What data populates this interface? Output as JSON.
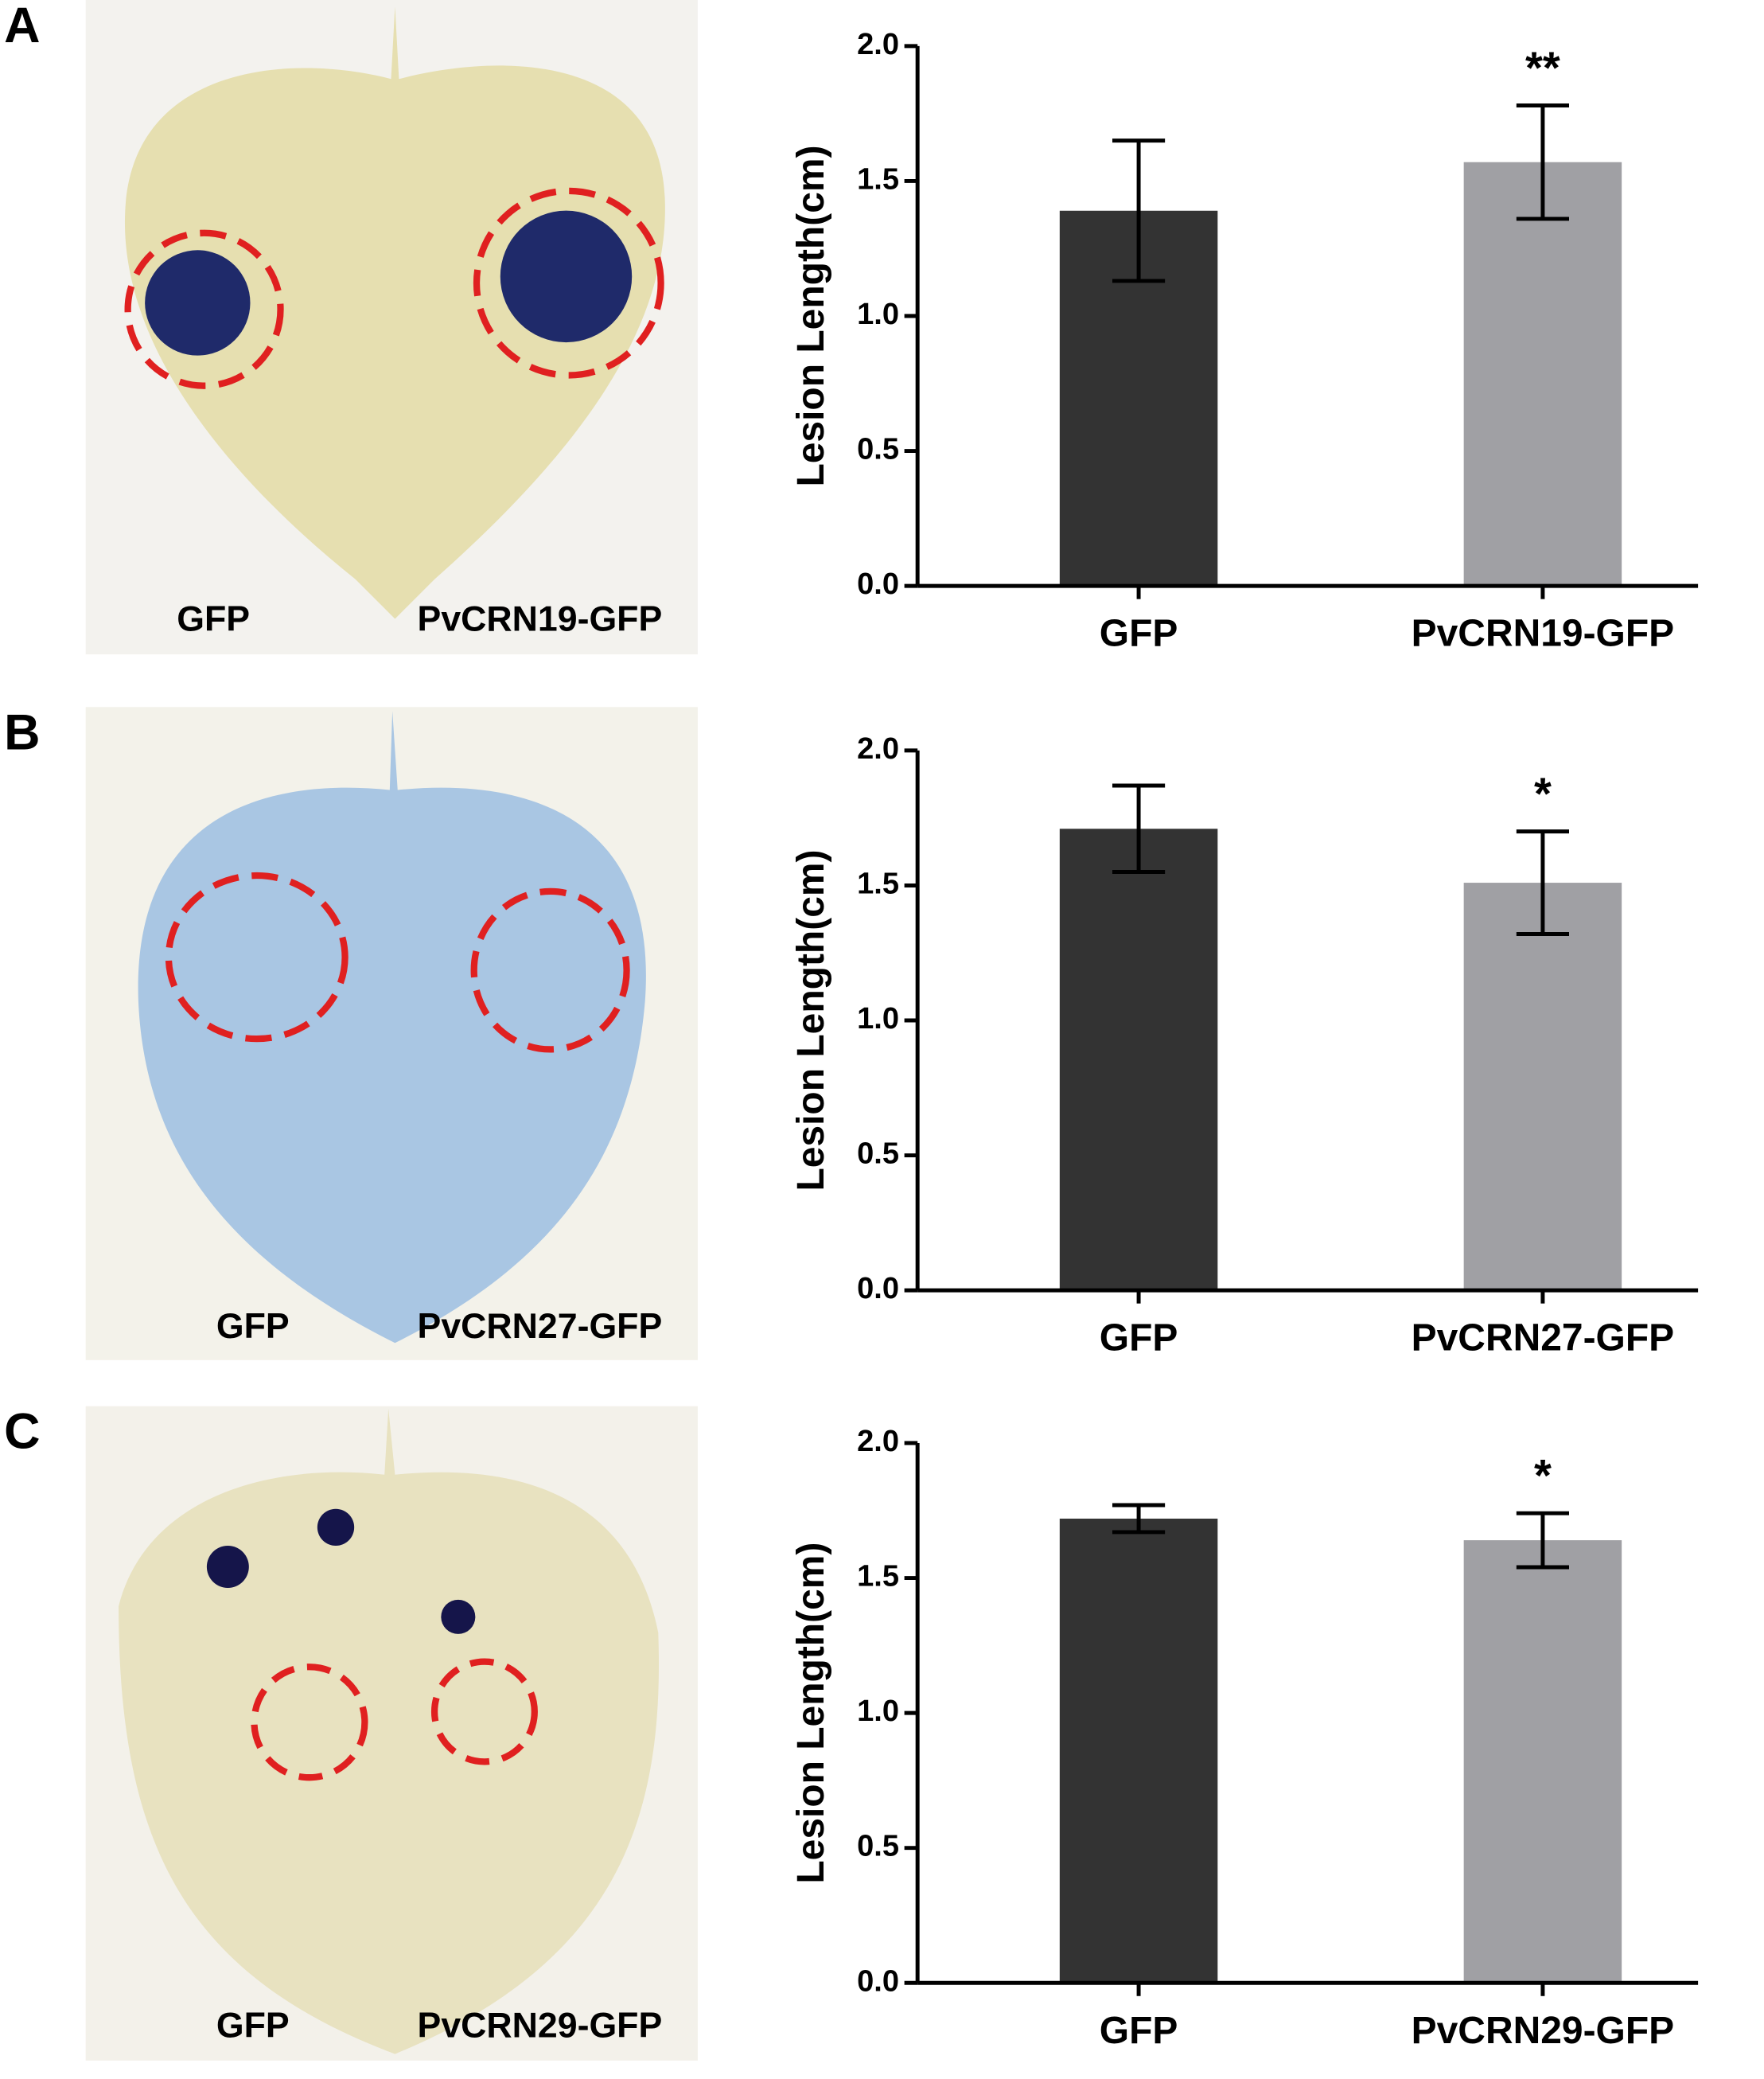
{
  "panels": [
    {
      "letter": "A",
      "photo_labels": [
        "GFP",
        "PvCRN19-GFP"
      ]
    },
    {
      "letter": "B",
      "photo_labels": [
        "GFP",
        "PvCRN27-GFP"
      ]
    },
    {
      "letter": "C",
      "photo_labels": [
        "GFP",
        "PvCRN29-GFP"
      ]
    }
  ],
  "chart_data": [
    {
      "type": "bar",
      "ylabel": "Lesion Length(cm)",
      "categories": [
        "GFP",
        "PvCRN19-GFP"
      ],
      "values": [
        1.39,
        1.57
      ],
      "errors": [
        0.26,
        0.21
      ],
      "colors": [
        "#333333",
        "#a0a0a4"
      ],
      "annotations": [
        {
          "category": "PvCRN19-GFP",
          "text": "**"
        }
      ],
      "ylim": [
        0,
        2
      ],
      "yticks": [
        {
          "value": 0,
          "label": "0.0"
        },
        0.5,
        {
          "value": 1,
          "label": "1.0"
        },
        1.5,
        {
          "value": 2,
          "label": "2.0"
        }
      ]
    },
    {
      "type": "bar",
      "ylabel": "Lesion Length(cm)",
      "categories": [
        "GFP",
        "PvCRN27-GFP"
      ],
      "values": [
        1.71,
        1.51
      ],
      "errors": [
        0.16,
        0.19
      ],
      "colors": [
        "#333333",
        "#a0a0a4"
      ],
      "annotations": [
        {
          "category": "PvCRN27-GFP",
          "text": "*"
        }
      ],
      "ylim": [
        0,
        2
      ],
      "yticks": [
        {
          "value": 0,
          "label": "0.0"
        },
        0.5,
        {
          "value": 1,
          "label": "1.0"
        },
        1.5,
        {
          "value": 2,
          "label": "2.0"
        }
      ]
    },
    {
      "type": "bar",
      "ylabel": "Lesion Length(cm)",
      "categories": [
        "GFP",
        "PvCRN29-GFP"
      ],
      "values": [
        1.72,
        1.64
      ],
      "errors": [
        0.05,
        0.1
      ],
      "colors": [
        "#333333",
        "#a0a0a4"
      ],
      "annotations": [
        {
          "category": "PvCRN29-GFP",
          "text": "*"
        }
      ],
      "ylim": [
        0,
        2
      ],
      "yticks": [
        {
          "value": 0,
          "label": "0.0"
        },
        0.5,
        {
          "value": 1,
          "label": "1.0"
        },
        1.5,
        {
          "value": 2,
          "label": "2.0"
        }
      ]
    }
  ]
}
